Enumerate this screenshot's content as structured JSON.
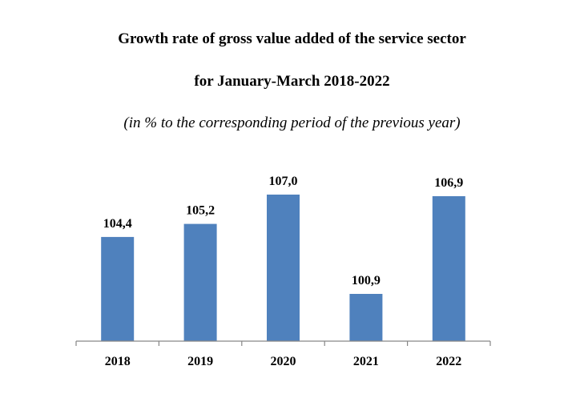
{
  "chart_data": {
    "type": "bar",
    "title": "Growth rate of gross value added of the service sector",
    "title_line2": "for January-March 2018-2022",
    "subtitle": "(in % to the corresponding period of the previous year)",
    "categories": [
      "2018",
      "2019",
      "2020",
      "2021",
      "2022"
    ],
    "values": [
      104.4,
      105.2,
      107.0,
      100.9,
      106.9
    ],
    "value_labels": [
      "104,4",
      "105,2",
      "107,0",
      "100,9",
      "106,9"
    ],
    "ylim": [
      98.0,
      107.0
    ],
    "xlabel": "",
    "ylabel": "",
    "bar_color": "#4F81BD",
    "axis_color": "#868686"
  }
}
